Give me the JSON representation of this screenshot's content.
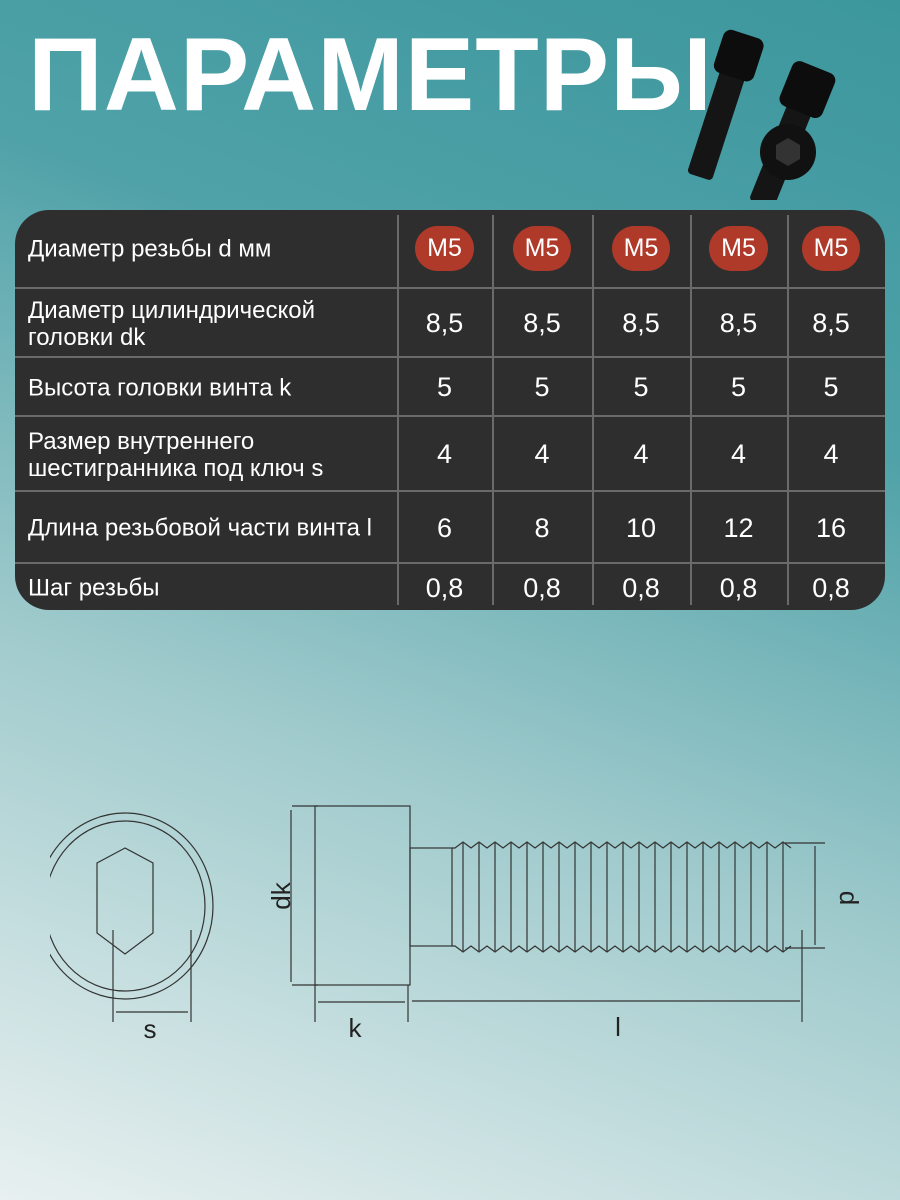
{
  "title": "ПАРАМЕТРЫ",
  "colors": {
    "table_bg": "#2e2e2e",
    "badge": "#b03a2a",
    "text": "#ffffff"
  },
  "table": {
    "rows": [
      {
        "label": "Диаметр резьбы d мм",
        "values": [
          "M5",
          "M5",
          "M5",
          "M5",
          "M5"
        ],
        "badge": true
      },
      {
        "label": "Диаметр цилиндрической головки dk",
        "values": [
          "8,5",
          "8,5",
          "8,5",
          "8,5",
          "8,5"
        ]
      },
      {
        "label": "Высота головки винта k",
        "values": [
          "5",
          "5",
          "5",
          "5",
          "5"
        ]
      },
      {
        "label": "Размер внутреннего шестигранника под ключ s",
        "values": [
          "4",
          "4",
          "4",
          "4",
          "4"
        ]
      },
      {
        "label": "Длина резьбовой части винта l",
        "values": [
          "6",
          "8",
          "10",
          "12",
          "16"
        ]
      },
      {
        "label": "Шаг резьбы",
        "values": [
          "0,8",
          "0,8",
          "0,8",
          "0,8",
          "0,8"
        ]
      }
    ]
  },
  "drawing": {
    "labels": {
      "s": "s",
      "k": "k",
      "l": "l",
      "dk": "dk",
      "d": "d"
    }
  }
}
